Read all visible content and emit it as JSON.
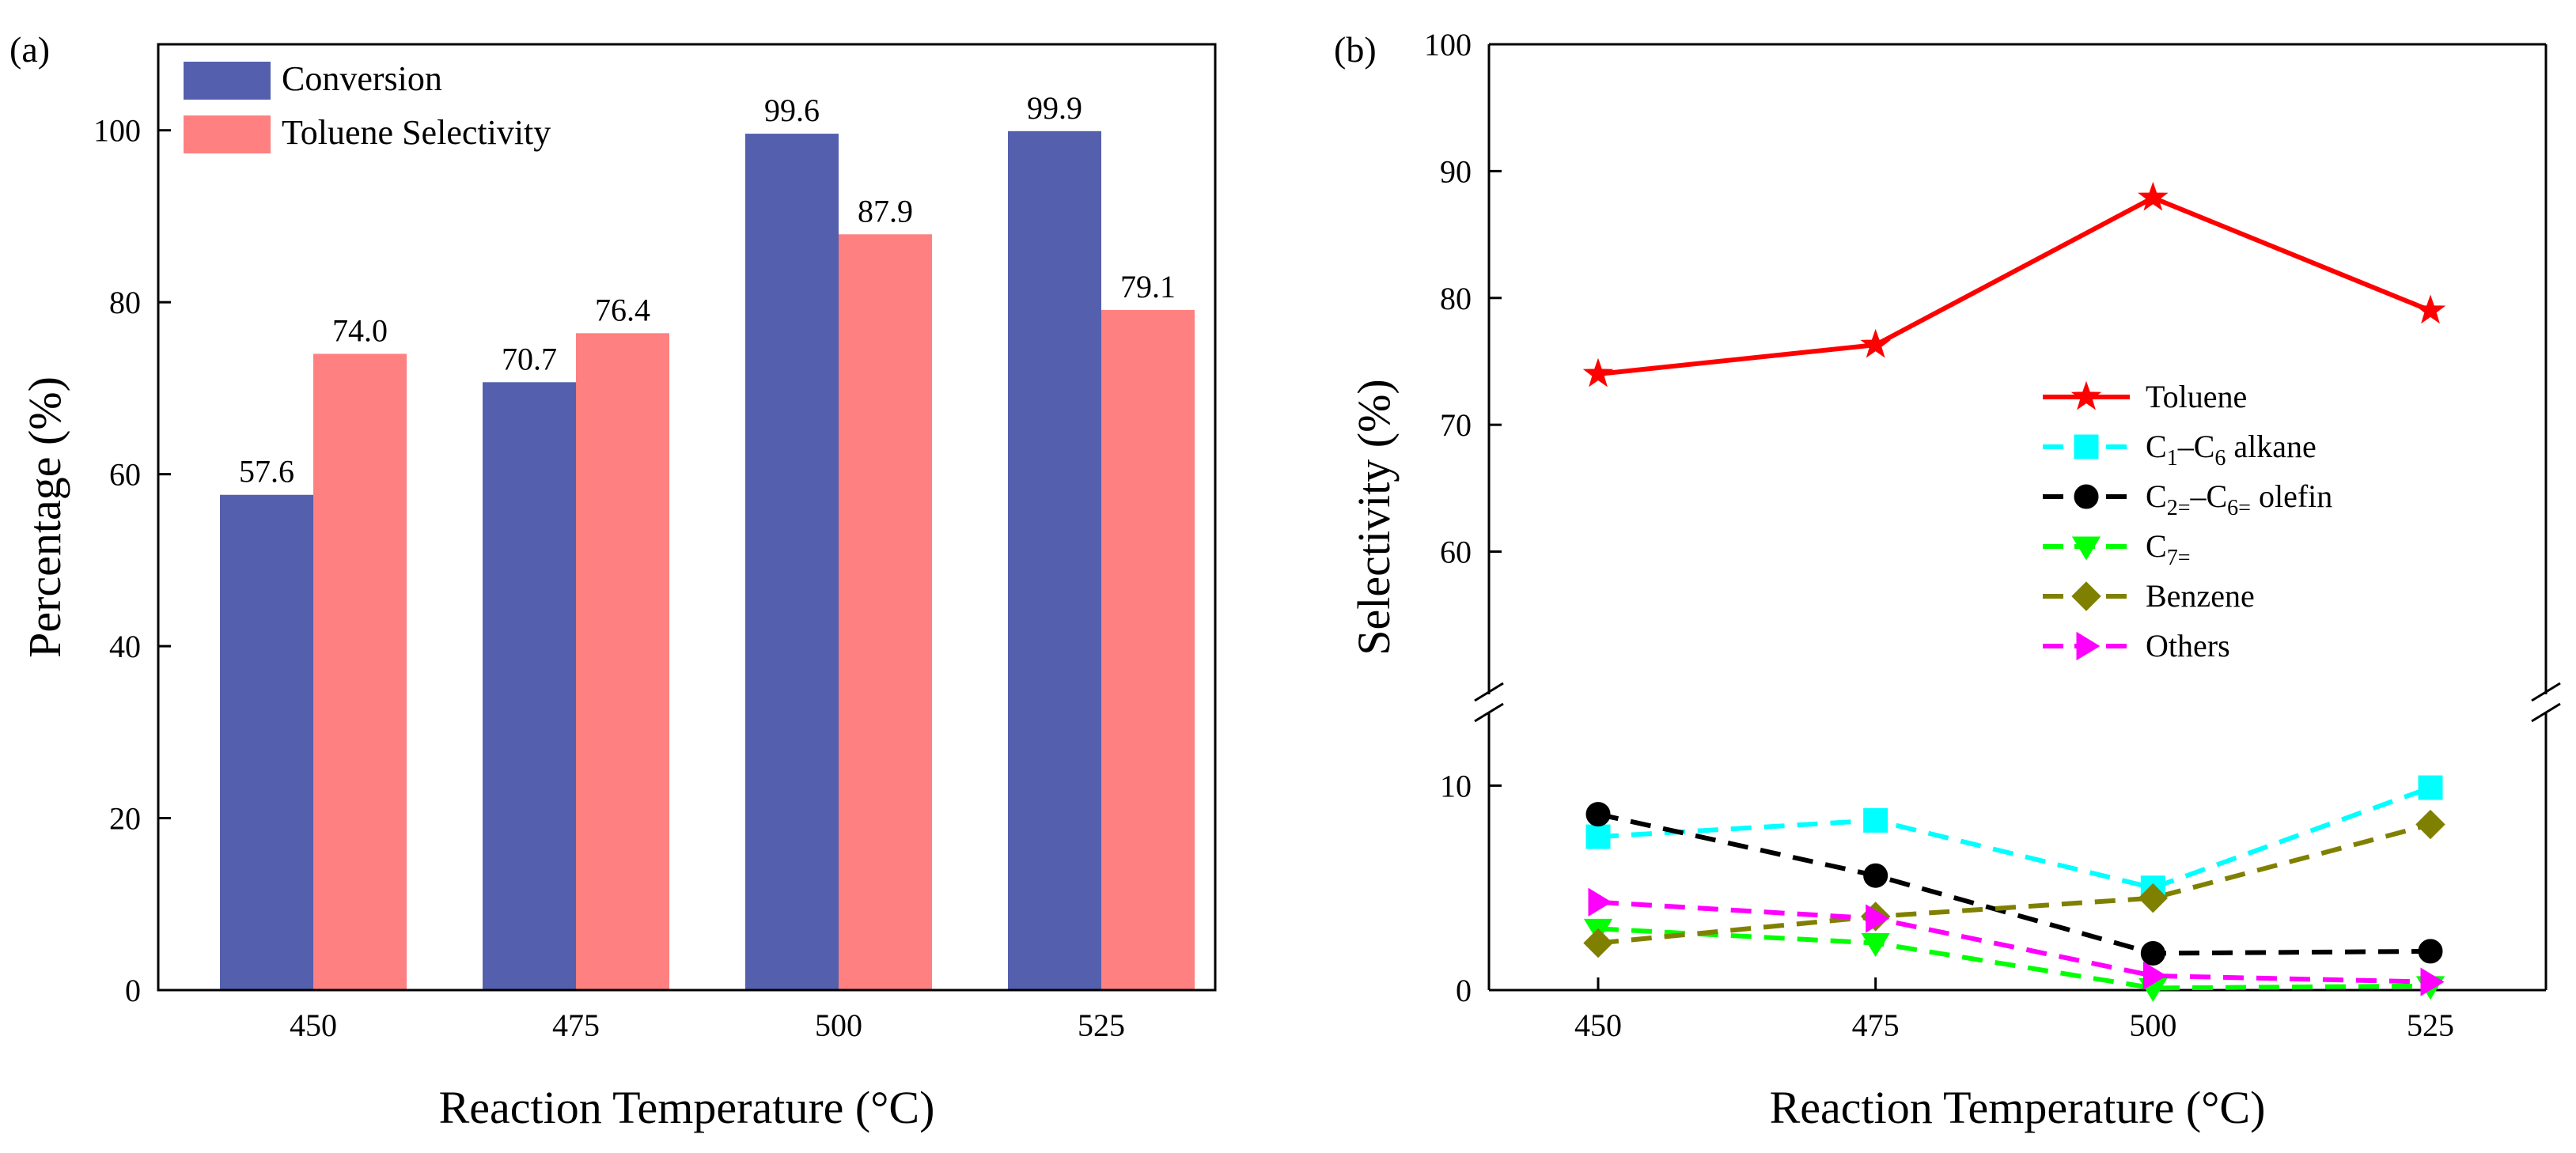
{
  "chart_data": [
    {
      "panel_label": "(a)",
      "type": "bar",
      "xlabel": "Reaction Temperature (°C)",
      "ylabel": "Percentage (%)",
      "ylim": [
        0,
        110
      ],
      "yticks": [
        0,
        20,
        40,
        60,
        80,
        100
      ],
      "categories": [
        "450",
        "475",
        "500",
        "525"
      ],
      "legend_position": "top-left",
      "series": [
        {
          "name": "Conversion",
          "color": "#5460AD",
          "values": [
            57.6,
            70.7,
            99.6,
            99.9
          ],
          "labels": [
            "57.6",
            "70.7",
            "99.6",
            "99.9"
          ]
        },
        {
          "name": "Toluene Selectivity",
          "color": "#FF8080",
          "values": [
            74.0,
            76.4,
            87.9,
            79.1
          ],
          "labels": [
            "74.0",
            "76.4",
            "87.9",
            "79.1"
          ]
        }
      ]
    },
    {
      "panel_label": "(b)",
      "type": "line",
      "xlabel": "Reaction Temperature (°C)",
      "ylabel": "Selectivity (%)",
      "x": [
        450,
        475,
        500,
        525
      ],
      "xticks": [
        "450",
        "475",
        "500",
        "525"
      ],
      "axis_break": {
        "lower_range": [
          0,
          14
        ],
        "upper_range": [
          48,
          100
        ]
      },
      "yticks_lower": [
        0,
        10
      ],
      "yticks_upper": [
        60,
        70,
        80,
        90,
        100
      ],
      "legend_position": "center-right",
      "series": [
        {
          "name": "Toluene",
          "name_parts": [
            [
              "Toluene",
              ""
            ]
          ],
          "color": "#FF0000",
          "marker": "star",
          "dash": "solid",
          "values": [
            74.0,
            76.3,
            87.9,
            79.0
          ]
        },
        {
          "name": "C1–C6 alkane",
          "name_parts": [
            [
              "C",
              ""
            ],
            [
              "1",
              "sub"
            ],
            [
              "–C",
              ""
            ],
            [
              "6",
              "sub"
            ],
            [
              " alkane",
              ""
            ]
          ],
          "color": "#00FFFF",
          "marker": "square",
          "dash": "dashed",
          "values": [
            7.5,
            8.3,
            5.0,
            9.9
          ]
        },
        {
          "name": "C2=–C6= olefin",
          "name_parts": [
            [
              "C",
              ""
            ],
            [
              "2=",
              "sub"
            ],
            [
              "–C",
              ""
            ],
            [
              "6=",
              "sub"
            ],
            [
              " olefin",
              ""
            ]
          ],
          "color": "#000000",
          "marker": "circle",
          "dash": "dashed",
          "values": [
            8.6,
            5.6,
            1.8,
            1.9
          ]
        },
        {
          "name": "C7=",
          "name_parts": [
            [
              "C",
              ""
            ],
            [
              "7=",
              "sub"
            ]
          ],
          "color": "#00FF00",
          "marker": "triangle-down",
          "dash": "dashed",
          "values": [
            3.0,
            2.3,
            0.1,
            0.2
          ]
        },
        {
          "name": "Benzene",
          "name_parts": [
            [
              "Benzene",
              ""
            ]
          ],
          "color": "#808000",
          "marker": "diamond",
          "dash": "dashed",
          "values": [
            2.3,
            3.6,
            4.5,
            8.1
          ]
        },
        {
          "name": "Others",
          "name_parts": [
            [
              "Others",
              ""
            ]
          ],
          "color": "#FF00FF",
          "marker": "triangle-right",
          "dash": "dashed",
          "values": [
            4.3,
            3.5,
            0.7,
            0.4
          ]
        }
      ]
    }
  ]
}
